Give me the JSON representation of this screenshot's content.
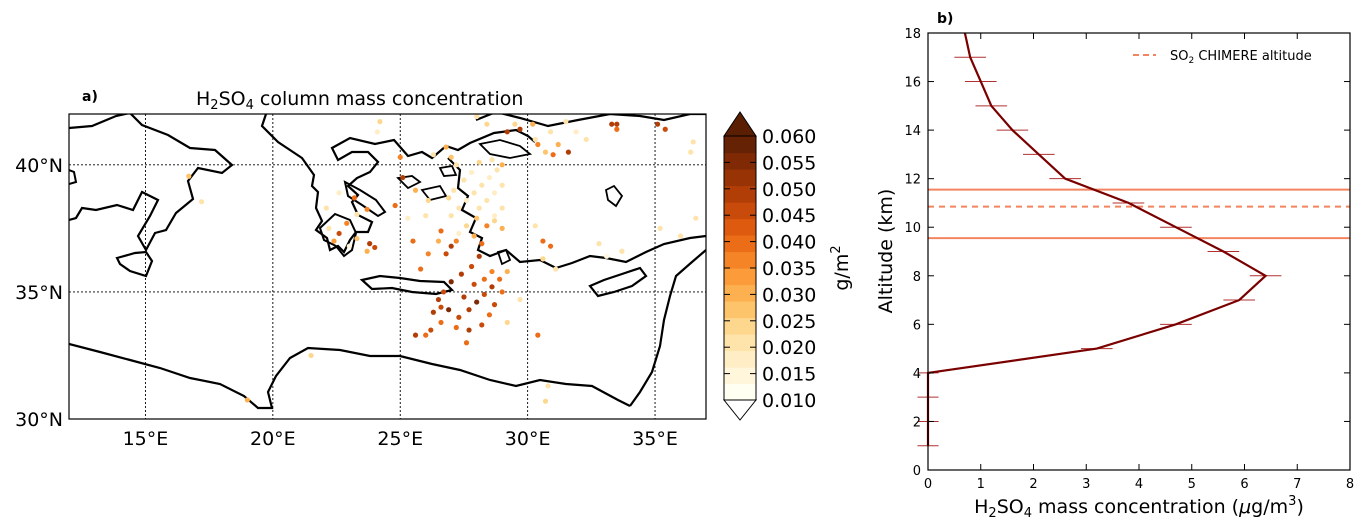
{
  "chart_data": [
    {
      "type": "scatter",
      "panel_label": "a)",
      "title_main": "H",
      "title_sub1": "2",
      "title_mid": "SO",
      "title_sub2": "4",
      "title_end": " column mass concentration",
      "x_ticks": [
        "15°E",
        "20°E",
        "25°E",
        "30°E",
        "35°E"
      ],
      "x_tick_values": [
        15,
        20,
        25,
        30,
        35
      ],
      "y_ticks": [
        "40°N",
        "35°N",
        "30°N"
      ],
      "y_tick_values": [
        40,
        35,
        30
      ],
      "xlim": [
        12,
        37
      ],
      "ylim": [
        30,
        42
      ],
      "grid": true,
      "colorbar": {
        "label": "g/m",
        "label_sup": "2",
        "ticks": [
          "0.060",
          "0.055",
          "0.050",
          "0.045",
          "0.040",
          "0.035",
          "0.030",
          "0.025",
          "0.020",
          "0.015",
          "0.010"
        ],
        "range": [
          0.01,
          0.06
        ],
        "colors": [
          "#fffff2",
          "#fff6dc",
          "#ffeec5",
          "#fee3aa",
          "#fed78e",
          "#fdc46c",
          "#fdb04f",
          "#fb9b3a",
          "#f58426",
          "#eb6d17",
          "#dd5a0f",
          "#c94b0b",
          "#b13d07",
          "#983305",
          "#7f2a04",
          "#662204"
        ],
        "under_color": "#ffffff",
        "over_color": "#5a1f03"
      },
      "points": [
        [
          16.7,
          39.55,
          0.028
        ],
        [
          17.2,
          38.55,
          0.022
        ],
        [
          19.0,
          30.75,
          0.03
        ],
        [
          21.5,
          32.5,
          0.025
        ],
        [
          22.1,
          38.3,
          0.022
        ],
        [
          22.4,
          37.0,
          0.032
        ],
        [
          22.6,
          37.3,
          0.045
        ],
        [
          22.2,
          37.5,
          0.02
        ],
        [
          22.6,
          38.9,
          0.018
        ],
        [
          22.9,
          37.7,
          0.035
        ],
        [
          23.2,
          38.7,
          0.04
        ],
        [
          23.7,
          38.25,
          0.038
        ],
        [
          23.3,
          38.05,
          0.022
        ],
        [
          23.8,
          36.9,
          0.05
        ],
        [
          23.3,
          37.1,
          0.028
        ],
        [
          23.0,
          36.8,
          0.015
        ],
        [
          23.7,
          36.6,
          0.03
        ],
        [
          24.0,
          36.75,
          0.045
        ],
        [
          25.1,
          39.5,
          0.05
        ],
        [
          25.3,
          37.9,
          0.018
        ],
        [
          25.6,
          39.0,
          0.03
        ],
        [
          26.1,
          38.6,
          0.025
        ],
        [
          26.0,
          38.0,
          0.02
        ],
        [
          24.8,
          38.4,
          0.04
        ],
        [
          25.0,
          40.3,
          0.035
        ],
        [
          26.3,
          40.4,
          0.02
        ],
        [
          26.8,
          40.7,
          0.03
        ],
        [
          27.0,
          40.3,
          0.028
        ],
        [
          27.2,
          40.0,
          0.022
        ],
        [
          28.1,
          40.1,
          0.025
        ],
        [
          28.6,
          40.2,
          0.02
        ],
        [
          29.0,
          40.0,
          0.03
        ],
        [
          26.6,
          37.4,
          0.04
        ],
        [
          26.5,
          37.0,
          0.03
        ],
        [
          26.8,
          36.5,
          0.045
        ],
        [
          27.0,
          36.8,
          0.05
        ],
        [
          27.3,
          37.3,
          0.018
        ],
        [
          27.6,
          37.6,
          0.025
        ],
        [
          27.9,
          37.2,
          0.03
        ],
        [
          28.2,
          36.9,
          0.04
        ],
        [
          28.4,
          37.6,
          0.035
        ],
        [
          28.7,
          37.8,
          0.025
        ],
        [
          29.0,
          37.5,
          0.03
        ],
        [
          28.1,
          36.4,
          0.05
        ],
        [
          27.8,
          36.0,
          0.045
        ],
        [
          27.4,
          35.7,
          0.05
        ],
        [
          27.0,
          35.4,
          0.055
        ],
        [
          26.7,
          35.0,
          0.045
        ],
        [
          26.5,
          34.7,
          0.05
        ],
        [
          26.9,
          34.3,
          0.055
        ],
        [
          27.3,
          34.0,
          0.045
        ],
        [
          27.7,
          34.3,
          0.05
        ],
        [
          28.0,
          34.6,
          0.055
        ],
        [
          28.3,
          34.9,
          0.045
        ],
        [
          28.6,
          35.2,
          0.05
        ],
        [
          28.9,
          35.5,
          0.04
        ],
        [
          29.2,
          35.8,
          0.03
        ],
        [
          29.0,
          35.0,
          0.04
        ],
        [
          28.7,
          34.5,
          0.045
        ],
        [
          28.5,
          34.1,
          0.04
        ],
        [
          28.2,
          33.7,
          0.045
        ],
        [
          27.7,
          33.5,
          0.05
        ],
        [
          27.2,
          33.6,
          0.04
        ],
        [
          26.6,
          33.8,
          0.04
        ],
        [
          26.2,
          33.5,
          0.045
        ],
        [
          26.0,
          33.3,
          0.04
        ],
        [
          25.6,
          33.3,
          0.05
        ],
        [
          26.3,
          34.2,
          0.05
        ],
        [
          26.6,
          34.4,
          0.045
        ],
        [
          27.5,
          34.8,
          0.05
        ],
        [
          27.9,
          35.3,
          0.045
        ],
        [
          28.3,
          35.5,
          0.04
        ],
        [
          28.6,
          35.8,
          0.035
        ],
        [
          27.0,
          38.0,
          0.02
        ],
        [
          27.3,
          38.3,
          0.022
        ],
        [
          27.6,
          38.6,
          0.018
        ],
        [
          27.9,
          38.9,
          0.02
        ],
        [
          28.2,
          39.2,
          0.022
        ],
        [
          28.5,
          39.5,
          0.018
        ],
        [
          28.8,
          39.8,
          0.02
        ],
        [
          27.5,
          39.4,
          0.022
        ],
        [
          27.8,
          39.7,
          0.018
        ],
        [
          28.1,
          38.3,
          0.02
        ],
        [
          28.4,
          38.6,
          0.022
        ],
        [
          28.7,
          38.9,
          0.018
        ],
        [
          29.0,
          39.2,
          0.02
        ],
        [
          29.0,
          38.3,
          0.022
        ],
        [
          28.7,
          38.0,
          0.018
        ],
        [
          27.1,
          39.0,
          0.022
        ],
        [
          26.9,
          38.7,
          0.025
        ],
        [
          27.2,
          37.0,
          0.035
        ],
        [
          28.0,
          37.9,
          0.028
        ],
        [
          25.5,
          37.0,
          0.04
        ],
        [
          26.1,
          36.5,
          0.035
        ],
        [
          25.8,
          35.9,
          0.04
        ],
        [
          27.6,
          33.0,
          0.04
        ],
        [
          29.2,
          33.8,
          0.025
        ],
        [
          30.4,
          33.3,
          0.04
        ],
        [
          30.3,
          37.6,
          0.02
        ],
        [
          30.6,
          36.3,
          0.025
        ],
        [
          30.9,
          36.8,
          0.04
        ],
        [
          30.6,
          37.0,
          0.04
        ],
        [
          31.1,
          35.9,
          0.02
        ],
        [
          30.8,
          31.3,
          0.02
        ],
        [
          30.7,
          30.7,
          0.025
        ],
        [
          30.7,
          40.5,
          0.028
        ],
        [
          30.4,
          40.8,
          0.035
        ],
        [
          31.0,
          40.4,
          0.04
        ],
        [
          31.2,
          40.8,
          0.03
        ],
        [
          31.6,
          40.5,
          0.05
        ],
        [
          30.9,
          41.3,
          0.02
        ],
        [
          31.5,
          41.7,
          0.02
        ],
        [
          31.9,
          41.3,
          0.018
        ],
        [
          32.3,
          41.0,
          0.02
        ],
        [
          30.3,
          41.0,
          0.022
        ],
        [
          29.5,
          41.6,
          0.025
        ],
        [
          29.7,
          41.4,
          0.05
        ],
        [
          29.2,
          41.3,
          0.05
        ],
        [
          28.0,
          41.9,
          0.02
        ],
        [
          28.4,
          41.6,
          0.025
        ],
        [
          30.2,
          41.6,
          0.03
        ],
        [
          33.3,
          41.6,
          0.05
        ],
        [
          33.5,
          41.4,
          0.04
        ],
        [
          33.5,
          41.6,
          0.05
        ],
        [
          35.1,
          41.6,
          0.05
        ],
        [
          35.4,
          41.4,
          0.045
        ],
        [
          36.5,
          40.9,
          0.022
        ],
        [
          36.4,
          40.5,
          0.02
        ],
        [
          36.6,
          37.9,
          0.02
        ],
        [
          35.2,
          37.5,
          0.02
        ],
        [
          36.0,
          37.2,
          0.02
        ],
        [
          33.7,
          36.6,
          0.02
        ],
        [
          33.1,
          36.4,
          0.015
        ],
        [
          32.8,
          36.9,
          0.02
        ],
        [
          29.7,
          34.7,
          0.02
        ],
        [
          24.2,
          41.7,
          0.025
        ],
        [
          24.1,
          41.3,
          0.018
        ]
      ]
    },
    {
      "type": "line",
      "panel_label": "b)",
      "xlabel_main": "H",
      "xlabel_sub1": "2",
      "xlabel_mid": "SO",
      "xlabel_sub2": "4",
      "xlabel_end": " mass concentration (",
      "xlabel_mu": "μ",
      "xlabel_unit": "g/m",
      "xlabel_sup": "3",
      "xlabel_close": ")",
      "ylabel": "Altitude (km)",
      "xlim": [
        0,
        8
      ],
      "ylim": [
        0,
        18
      ],
      "x_ticks": [
        "0",
        "1",
        "2",
        "3",
        "4",
        "5",
        "6",
        "7",
        "8"
      ],
      "y_ticks": [
        "0",
        "2",
        "4",
        "6",
        "8",
        "10",
        "12",
        "14",
        "16",
        "18"
      ],
      "grid": false,
      "legend": {
        "placement": "top-right",
        "label_main": "SO",
        "label_sub": "2",
        "label_end": " CHIMERE altitude",
        "color": "#f4845f"
      },
      "series": [
        {
          "color": "#7a0000",
          "x": [
            0.0,
            0.0,
            0.0,
            0.0,
            3.2,
            4.7,
            5.9,
            6.4,
            5.6,
            4.7,
            3.8,
            2.6,
            2.1,
            1.6,
            1.2,
            1.0,
            0.8,
            0.7
          ],
          "y": [
            1,
            2,
            3,
            4,
            5,
            6,
            7,
            8,
            9,
            10,
            11,
            12,
            13,
            14,
            15,
            16,
            17,
            18
          ],
          "error_tick_x": [
            0.2,
            0.2,
            0.2,
            0.2,
            0.3,
            0.3,
            0.3,
            0.3,
            0.3,
            0.3,
            0.3,
            0.3,
            0.3,
            0.3,
            0.3,
            0.3,
            0.3,
            0.0
          ]
        }
      ],
      "hlines": [
        {
          "y": 11.55,
          "style": "solid",
          "color": "#f4845f"
        },
        {
          "y": 10.85,
          "style": "dashed",
          "color": "#f4845f"
        },
        {
          "y": 9.55,
          "style": "solid",
          "color": "#f4845f"
        }
      ]
    }
  ]
}
